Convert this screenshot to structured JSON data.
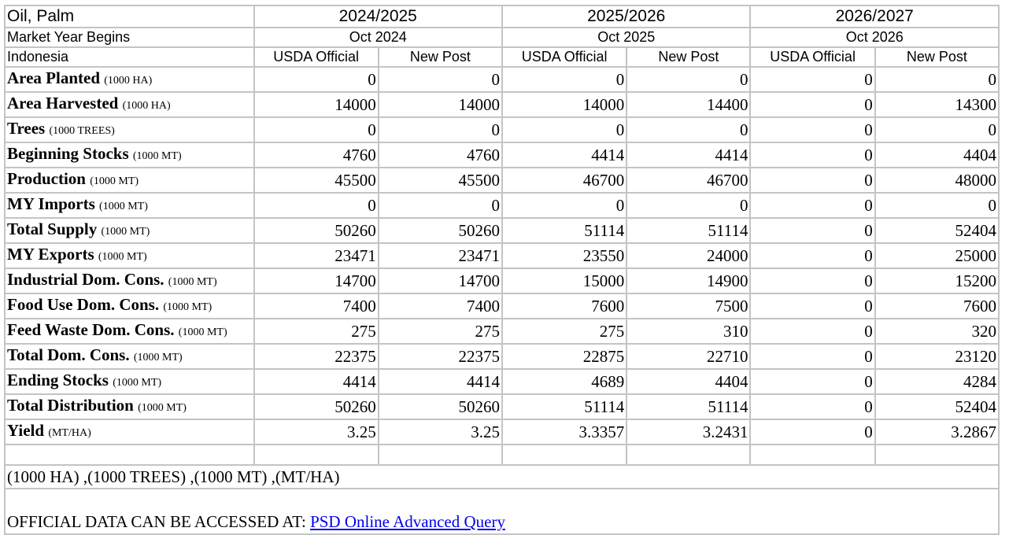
{
  "header": {
    "commodity": "Oil, Palm",
    "market_year_label": "Market Year Begins",
    "country": "Indonesia",
    "years": [
      {
        "year": "2024/2025",
        "begins": "Oct 2024"
      },
      {
        "year": "2025/2026",
        "begins": "Oct 2025"
      },
      {
        "year": "2026/2027",
        "begins": "Oct 2026"
      }
    ],
    "col_a": "USDA Official",
    "col_b": "New Post"
  },
  "rows": [
    {
      "label": "Area Planted",
      "unit": "(1000 HA)",
      "values": [
        "0",
        "0",
        "0",
        "0",
        "0",
        "0"
      ]
    },
    {
      "label": "Area Harvested",
      "unit": "(1000 HA)",
      "values": [
        "14000",
        "14000",
        "14000",
        "14400",
        "0",
        "14300"
      ]
    },
    {
      "label": "Trees",
      "unit": "(1000 TREES)",
      "values": [
        "0",
        "0",
        "0",
        "0",
        "0",
        "0"
      ]
    },
    {
      "label": "Beginning Stocks",
      "unit": "(1000 MT)",
      "values": [
        "4760",
        "4760",
        "4414",
        "4414",
        "0",
        "4404"
      ]
    },
    {
      "label": "Production",
      "unit": "(1000 MT)",
      "values": [
        "45500",
        "45500",
        "46700",
        "46700",
        "0",
        "48000"
      ]
    },
    {
      "label": "MY Imports",
      "unit": "(1000 MT)",
      "values": [
        "0",
        "0",
        "0",
        "0",
        "0",
        "0"
      ]
    },
    {
      "label": "Total Supply",
      "unit": "(1000 MT)",
      "values": [
        "50260",
        "50260",
        "51114",
        "51114",
        "0",
        "52404"
      ]
    },
    {
      "label": "MY Exports",
      "unit": "(1000 MT)",
      "values": [
        "23471",
        "23471",
        "23550",
        "24000",
        "0",
        "25000"
      ]
    },
    {
      "label": "Industrial Dom. Cons.",
      "unit": "(1000 MT)",
      "values": [
        "14700",
        "14700",
        "15000",
        "14900",
        "0",
        "15200"
      ]
    },
    {
      "label": "Food Use Dom. Cons.",
      "unit": "(1000 MT)",
      "values": [
        "7400",
        "7400",
        "7600",
        "7500",
        "0",
        "7600"
      ]
    },
    {
      "label": "Feed Waste Dom. Cons.",
      "unit": "(1000 MT)",
      "values": [
        "275",
        "275",
        "275",
        "310",
        "0",
        "320"
      ]
    },
    {
      "label": "Total Dom. Cons.",
      "unit": "(1000 MT)",
      "values": [
        "22375",
        "22375",
        "22875",
        "22710",
        "0",
        "23120"
      ]
    },
    {
      "label": "Ending Stocks",
      "unit": "(1000 MT)",
      "values": [
        "4414",
        "4414",
        "4689",
        "4404",
        "0",
        "4284"
      ]
    },
    {
      "label": "Total Distribution",
      "unit": "(1000 MT)",
      "values": [
        "50260",
        "50260",
        "51114",
        "51114",
        "0",
        "52404"
      ]
    },
    {
      "label": "Yield",
      "unit": "(MT/HA)",
      "values": [
        "3.25",
        "3.25",
        "3.3357",
        "3.2431",
        "0",
        "3.2867"
      ]
    }
  ],
  "units_note": "(1000 HA) ,(1000 TREES) ,(1000 MT) ,(MT/HA)",
  "footer": {
    "text": "OFFICIAL DATA CAN BE ACCESSED AT: ",
    "link": "PSD Online Advanced Query",
    "link_color": "#0000ee"
  }
}
